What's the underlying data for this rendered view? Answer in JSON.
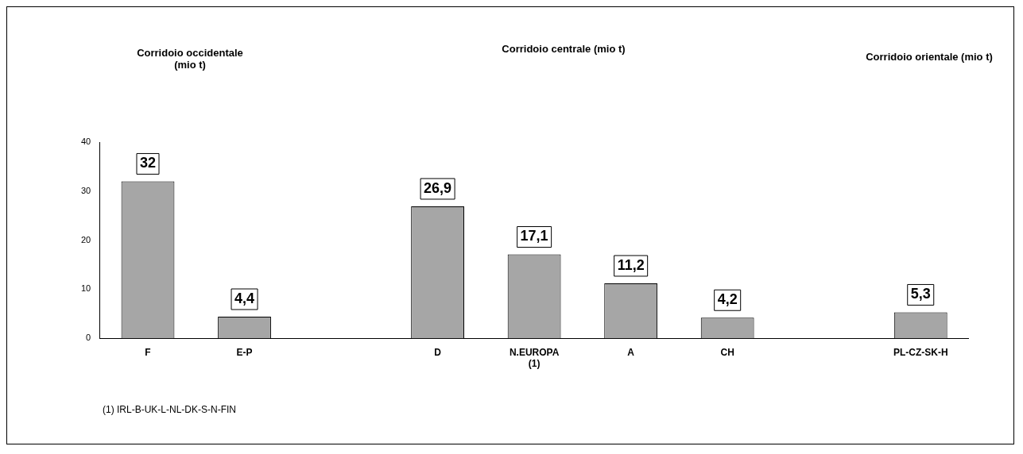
{
  "chart_data": {
    "type": "bar",
    "categories": [
      "F",
      "E-P",
      null,
      "D",
      "N.EUROPA (1)",
      "A",
      "CH",
      null,
      "PL-CZ-SK-H"
    ],
    "values": [
      32,
      4.4,
      null,
      26.9,
      17.1,
      11.2,
      4.2,
      null,
      5.3
    ],
    "value_labels": [
      "32",
      "4,4",
      null,
      "26,9",
      "17,1",
      "11,2",
      "4,2",
      null,
      "5,3"
    ],
    "color": "#a6a6a6",
    "ylim": [
      0,
      40
    ],
    "yticks": [
      0,
      10,
      20,
      30,
      40
    ],
    "grid": false,
    "legend": false,
    "annotations": [
      "Corridoio occidentale (mio t)",
      "Corridoio centrale (mio t)",
      "Corridoio orientale (mio t)",
      "(1) IRL-B-UK-L-NL-DK-S-N-FIN"
    ]
  }
}
